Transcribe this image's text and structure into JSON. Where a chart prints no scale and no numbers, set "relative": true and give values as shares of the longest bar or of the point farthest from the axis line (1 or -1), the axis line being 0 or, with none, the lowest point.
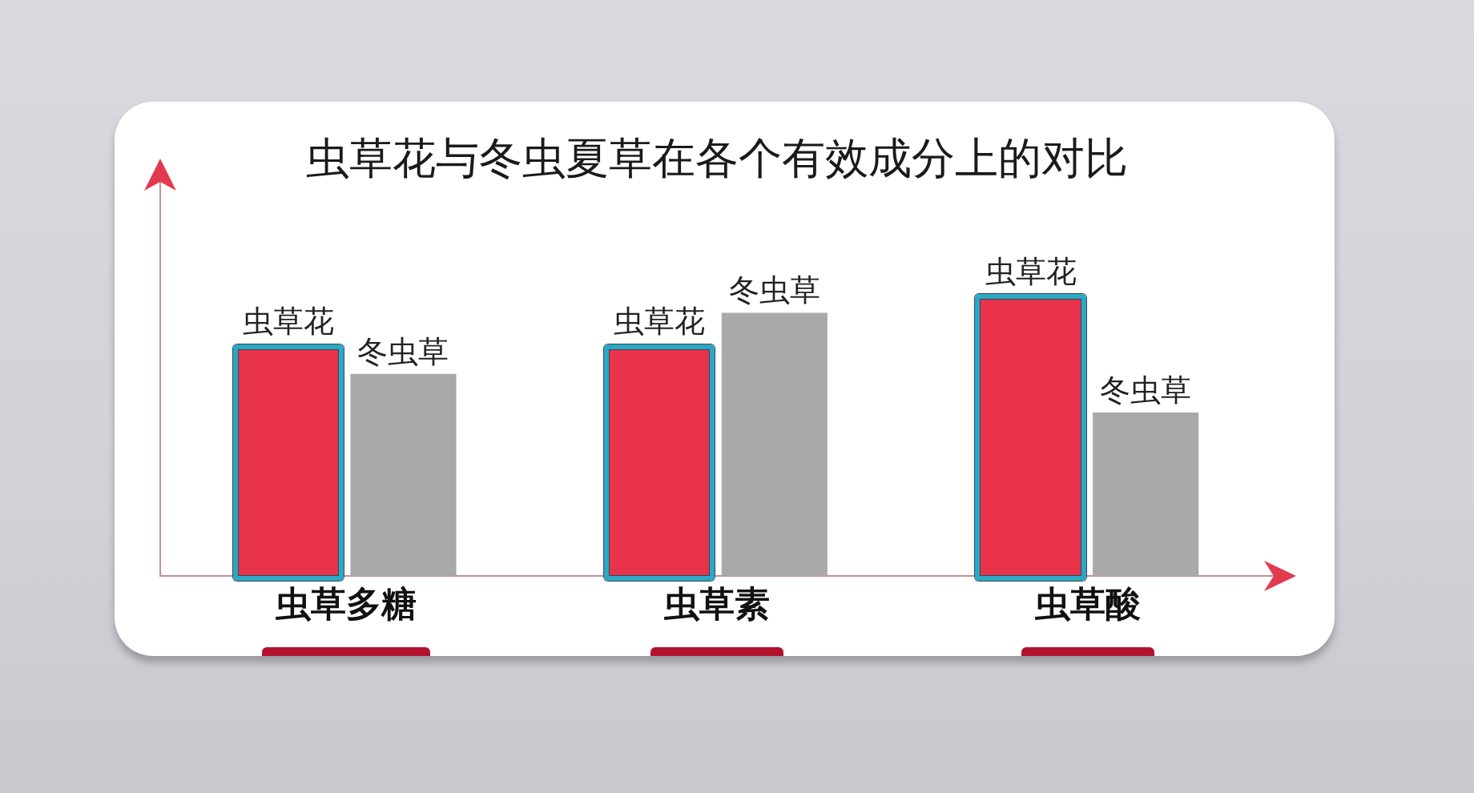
{
  "chart_data": {
    "type": "bar",
    "title": "虫草花与冬虫夏草在各个有效成分上的对比",
    "categories": [
      "虫草多糖",
      "虫草素",
      "虫草酸"
    ],
    "series": [
      {
        "name": "虫草花",
        "color": "#e8334a",
        "values": [
          0.82,
          0.82,
          1
        ]
      },
      {
        "name": "冬虫草",
        "color": "#a9a9a9",
        "values": [
          0.73,
          0.95,
          0.59
        ]
      }
    ],
    "relative": true
  }
}
